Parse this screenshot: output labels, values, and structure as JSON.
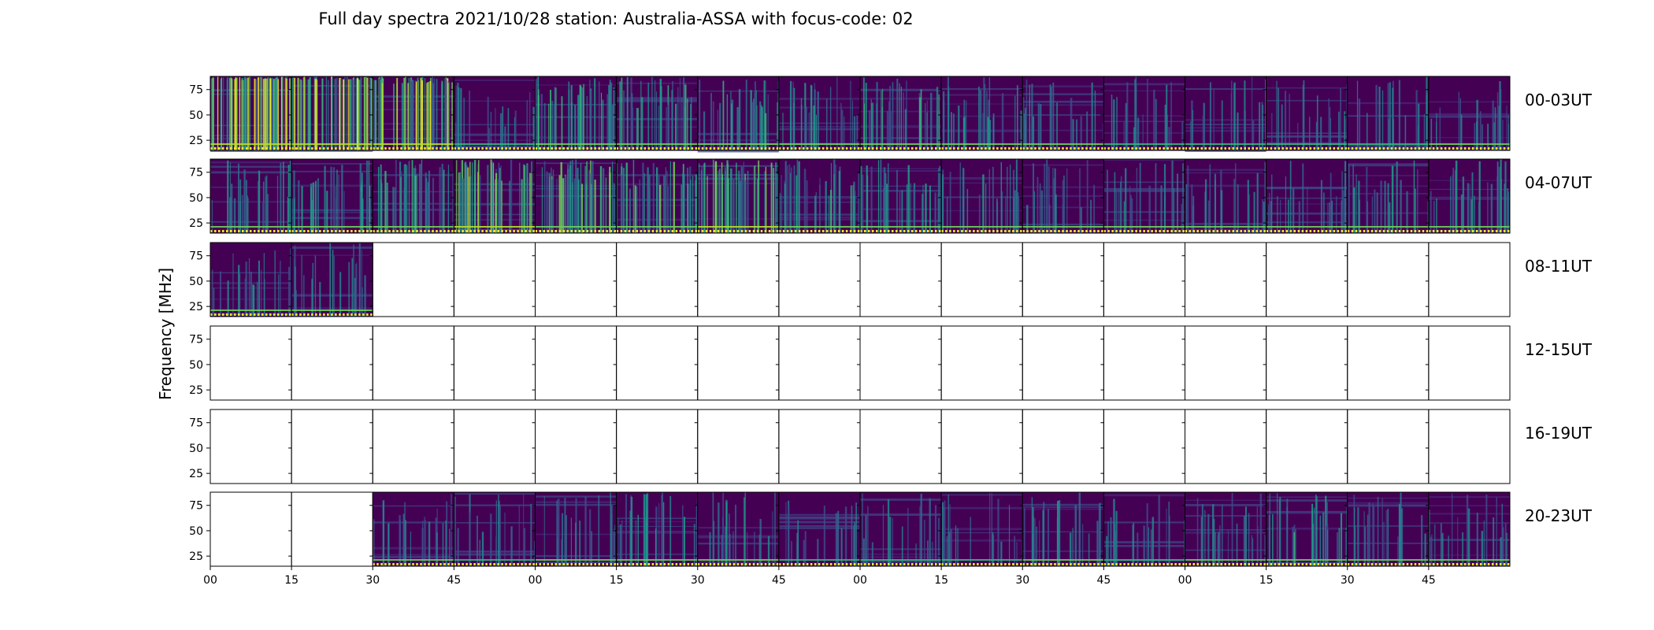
{
  "title": "Full day spectra 2021/10/28 station: Australia-ASSA with focus-code: 02",
  "colors": {
    "viridis": [
      "#440154",
      "#482878",
      "#3e4989",
      "#31688e",
      "#26828e",
      "#1f9e89",
      "#35b779",
      "#6ece58",
      "#b5de2b",
      "#fde725"
    ],
    "axes": "#000000",
    "dotted_line": "#fde725"
  },
  "chart_data": {
    "type": "heatmap",
    "ylabel": "Frequency [MHz]",
    "xlabel": "",
    "ylim": [
      15,
      88
    ],
    "yticks": [
      25,
      50,
      75
    ],
    "xtick_labels": [
      "00",
      "15",
      "30",
      "45",
      "00",
      "15",
      "30",
      "45",
      "00",
      "15",
      "30",
      "45",
      "00",
      "15",
      "30",
      "45"
    ],
    "panel_minutes": 15,
    "rows": [
      {
        "label": "00-03UT",
        "panels": [
          "data",
          "data",
          "data",
          "data",
          "data",
          "data",
          "data",
          "data",
          "data",
          "data",
          "data",
          "data",
          "data",
          "data",
          "data",
          "data"
        ],
        "intensity": [
          0.95,
          0.95,
          0.9,
          0.3,
          0.6,
          0.55,
          0.5,
          0.45,
          0.5,
          0.4,
          0.35,
          0.3,
          0.3,
          0.3,
          0.3,
          0.35
        ]
      },
      {
        "label": "04-07UT",
        "panels": [
          "data",
          "data",
          "data",
          "data",
          "data",
          "data",
          "data",
          "data",
          "data",
          "data",
          "data",
          "data",
          "data",
          "data",
          "data",
          "data"
        ],
        "intensity": [
          0.4,
          0.45,
          0.6,
          0.7,
          0.65,
          0.6,
          0.7,
          0.5,
          0.45,
          0.4,
          0.35,
          0.35,
          0.35,
          0.35,
          0.35,
          0.4
        ]
      },
      {
        "label": "08-11UT",
        "panels": [
          "data",
          "data",
          "empty",
          "empty",
          "empty",
          "empty",
          "empty",
          "empty",
          "empty",
          "empty",
          "empty",
          "empty",
          "empty",
          "empty",
          "empty",
          "empty"
        ],
        "intensity": [
          0.35,
          0.35,
          0,
          0,
          0,
          0,
          0,
          0,
          0,
          0,
          0,
          0,
          0,
          0,
          0,
          0
        ]
      },
      {
        "label": "12-15UT",
        "panels": [
          "empty",
          "empty",
          "empty",
          "empty",
          "empty",
          "empty",
          "empty",
          "empty",
          "empty",
          "empty",
          "empty",
          "empty",
          "empty",
          "empty",
          "empty",
          "empty"
        ],
        "intensity": [
          0,
          0,
          0,
          0,
          0,
          0,
          0,
          0,
          0,
          0,
          0,
          0,
          0,
          0,
          0,
          0
        ]
      },
      {
        "label": "16-19UT",
        "panels": [
          "empty",
          "empty",
          "empty",
          "empty",
          "empty",
          "empty",
          "empty",
          "empty",
          "empty",
          "empty",
          "empty",
          "empty",
          "empty",
          "empty",
          "empty",
          "empty"
        ],
        "intensity": [
          0,
          0,
          0,
          0,
          0,
          0,
          0,
          0,
          0,
          0,
          0,
          0,
          0,
          0,
          0,
          0
        ]
      },
      {
        "label": "20-23UT",
        "panels": [
          "empty",
          "empty",
          "data",
          "data",
          "data",
          "data",
          "data",
          "data",
          "data",
          "data",
          "data",
          "data",
          "data",
          "data",
          "data",
          "data"
        ],
        "intensity": [
          0,
          0,
          0.35,
          0.3,
          0.35,
          0.45,
          0.35,
          0.3,
          0.3,
          0.3,
          0.35,
          0.3,
          0.35,
          0.45,
          0.35,
          0.35
        ]
      }
    ],
    "colormap": "viridis",
    "grid": false
  }
}
